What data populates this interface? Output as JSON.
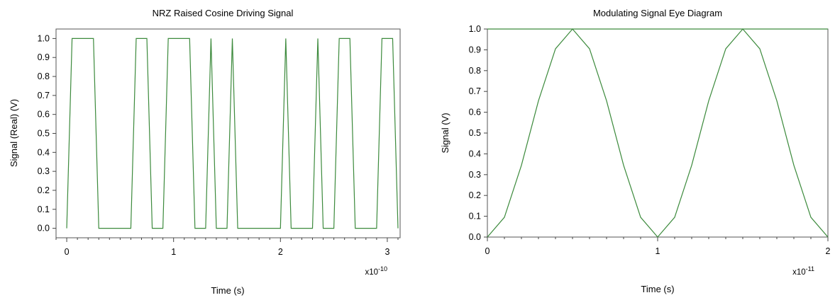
{
  "chart_data": [
    {
      "type": "line",
      "title": "NRZ Raised Cosine Driving Signal",
      "xlabel": "Time (s)",
      "ylabel": "Signal (Real) (V)",
      "x_multiplier": "x10",
      "x_exponent": "-10",
      "xlim": [
        -0.1,
        3.12
      ],
      "ylim": [
        -0.05,
        1.05
      ],
      "x_ticks": [
        0,
        1,
        2,
        3
      ],
      "y_ticks": [
        0.0,
        0.1,
        0.2,
        0.3,
        0.4,
        0.5,
        0.6,
        0.7,
        0.8,
        0.9,
        1.0
      ],
      "grid": false,
      "color": "#3c8a3c",
      "series": [
        {
          "x": [
            0.0,
            0.05,
            0.25,
            0.3,
            0.6,
            0.65,
            0.75,
            0.8,
            0.9,
            0.95,
            1.15,
            1.2,
            1.3,
            1.35,
            1.4,
            1.5,
            1.55,
            1.6,
            2.0,
            2.05,
            2.1,
            2.3,
            2.35,
            2.4,
            2.5,
            2.55,
            2.65,
            2.7,
            2.9,
            2.95,
            3.05,
            3.1
          ],
          "y": [
            0.0,
            1.0,
            1.0,
            0.0,
            0.0,
            1.0,
            1.0,
            0.0,
            0.0,
            1.0,
            1.0,
            0.0,
            0.0,
            1.0,
            0.0,
            0.0,
            1.0,
            0.0,
            0.0,
            1.0,
            0.0,
            0.0,
            1.0,
            0.0,
            0.0,
            1.0,
            1.0,
            0.0,
            0.0,
            1.0,
            1.0,
            0.0
          ]
        }
      ]
    },
    {
      "type": "line",
      "title": "Modulating Signal Eye Diagram",
      "xlabel": "Time (s)",
      "ylabel": "Signal (V)",
      "x_multiplier": "x10",
      "x_exponent": "-11",
      "xlim": [
        0,
        2
      ],
      "ylim": [
        0,
        1
      ],
      "x_ticks": [
        0,
        1,
        2
      ],
      "y_ticks": [
        0.0,
        0.1,
        0.2,
        0.3,
        0.4,
        0.5,
        0.6,
        0.7,
        0.8,
        0.9,
        1.0
      ],
      "grid": false,
      "color": "#3c8a3c",
      "series": [
        {
          "x": [
            0.0,
            0.1,
            0.2,
            0.3,
            0.4,
            0.5,
            0.6,
            0.7,
            0.8,
            0.9,
            1.0,
            1.1,
            1.2,
            1.3,
            1.4,
            1.5,
            1.6,
            1.7,
            1.8,
            1.9,
            2.0
          ],
          "y": [
            0.0,
            0.095,
            0.345,
            0.655,
            0.905,
            1.0,
            0.905,
            0.655,
            0.345,
            0.095,
            0.0,
            0.095,
            0.345,
            0.655,
            0.905,
            1.0,
            0.905,
            0.655,
            0.345,
            0.095,
            0.0
          ]
        },
        {
          "x": [
            0.0,
            2.0
          ],
          "y": [
            1.0,
            1.0
          ]
        }
      ]
    }
  ]
}
